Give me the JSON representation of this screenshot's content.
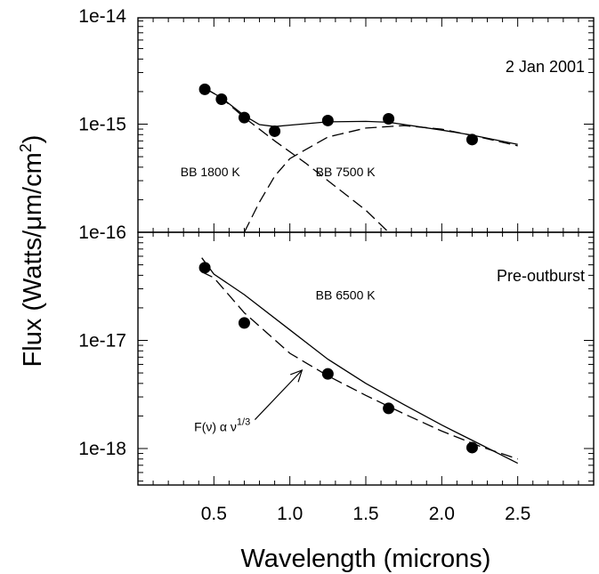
{
  "chart_data": {
    "type": "scatter",
    "xlabel": "Wavelength (microns)",
    "ylabel": "Flux (Watts/μm/cm²)",
    "ylabel_parts": {
      "main": "Flux (Watts/μm/cm",
      "sup": "2",
      "tail": ")"
    },
    "x_range": [
      0.0,
      3.0
    ],
    "x_ticks": [
      0.5,
      1.0,
      1.5,
      2.0,
      2.5
    ],
    "x_tick_labels": [
      "0.5",
      "1.0",
      "1.5",
      "2.0",
      "2.5"
    ],
    "y_scale": "log",
    "panels": [
      {
        "id": "top",
        "label": "2 Jan 2001",
        "y_range": [
          1e-16,
          1e-14
        ],
        "y_tick_labels": [
          "1e-14",
          "1e-15"
        ],
        "points": [
          {
            "x": 0.44,
            "y": 2.1e-15
          },
          {
            "x": 0.55,
            "y": 1.7e-15
          },
          {
            "x": 0.7,
            "y": 1.15e-15
          },
          {
            "x": 0.9,
            "y": 8.6e-16
          },
          {
            "x": 1.25,
            "y": 1.08e-15
          },
          {
            "x": 1.65,
            "y": 1.12e-15
          },
          {
            "x": 2.2,
            "y": 7.2e-16
          }
        ],
        "curves": [
          {
            "style": "solid",
            "points": [
              [
                0.44,
                2.15e-15
              ],
              [
                0.55,
                1.75e-15
              ],
              [
                0.7,
                1.2e-15
              ],
              [
                0.8,
                9.9e-16
              ],
              [
                0.9,
                9.5e-16
              ],
              [
                1.0,
                9.8e-16
              ],
              [
                1.25,
                1.05e-15
              ],
              [
                1.5,
                1.06e-15
              ],
              [
                1.65,
                1.04e-15
              ],
              [
                2.0,
                8.8e-16
              ],
              [
                2.2,
                7.9e-16
              ],
              [
                2.5,
                6.5e-16
              ]
            ]
          },
          {
            "style": "dashed",
            "points": [
              [
                0.44,
                2.15e-15
              ],
              [
                0.55,
                1.75e-15
              ],
              [
                0.7,
                1.15e-15
              ],
              [
                0.9,
                7e-16
              ],
              [
                1.1,
                4.4e-16
              ],
              [
                1.3,
                2.65e-16
              ],
              [
                1.5,
                1.6e-16
              ],
              [
                1.65,
                1e-16
              ]
            ]
          },
          {
            "style": "dashed",
            "points": [
              [
                0.7,
                1e-16
              ],
              [
                0.8,
                1.9e-16
              ],
              [
                0.9,
                3.3e-16
              ],
              [
                1.0,
                4.8e-16
              ],
              [
                1.25,
                7.6e-16
              ],
              [
                1.5,
                9.2e-16
              ],
              [
                1.75,
                9.7e-16
              ],
              [
                2.0,
                9e-16
              ],
              [
                2.25,
                7.6e-16
              ],
              [
                2.5,
                6.3e-16
              ]
            ]
          }
        ],
        "annotations": [
          {
            "text": "BB 1800 K",
            "x": 0.28,
            "y": 3.3e-16
          },
          {
            "text": "BB 7500 K",
            "x": 1.17,
            "y": 3.3e-16
          }
        ]
      },
      {
        "id": "bottom",
        "label": "Pre-outburst",
        "y_range": [
          5e-19,
          1e-16
        ],
        "y_tick_labels": [
          "1e-16",
          "1e-17",
          "1e-18"
        ],
        "points": [
          {
            "x": 0.44,
            "y": 4.7e-17
          },
          {
            "x": 0.7,
            "y": 1.45e-17
          },
          {
            "x": 1.25,
            "y": 4.9e-18
          },
          {
            "x": 1.65,
            "y": 2.35e-18
          },
          {
            "x": 2.2,
            "y": 1.02e-18
          }
        ],
        "curves": [
          {
            "style": "solid",
            "points": [
              [
                0.42,
                5.8e-17
              ],
              [
                0.5,
                4.1e-17
              ],
              [
                0.7,
                2.65e-17
              ],
              [
                1.0,
                1.25e-17
              ],
              [
                1.25,
                6.7e-18
              ],
              [
                1.5,
                4e-18
              ],
              [
                1.75,
                2.55e-18
              ],
              [
                2.0,
                1.65e-18
              ],
              [
                2.25,
                1.1e-18
              ],
              [
                2.5,
                7.3e-19
              ]
            ]
          },
          {
            "style": "dashed",
            "points": [
              [
                0.42,
                4.3e-17
              ],
              [
                0.5,
                3.8e-17
              ],
              [
                0.7,
                1.8e-17
              ],
              [
                1.0,
                7.6e-18
              ],
              [
                1.25,
                4.7e-18
              ],
              [
                1.5,
                3.1e-18
              ],
              [
                1.75,
                2.1e-18
              ],
              [
                2.0,
                1.45e-18
              ],
              [
                2.25,
                1.05e-18
              ],
              [
                2.5,
                8e-19
              ]
            ]
          }
        ],
        "annotations": [
          {
            "text": "BB 6500 K",
            "x": 1.17,
            "y": 2.4e-17
          }
        ],
        "formula": {
          "text": "F(ν) α ν",
          "sup": "1/3",
          "x": 0.37,
          "y": 1.45e-18
        },
        "arrow": {
          "from": [
            0.77,
            1.85e-18
          ],
          "to": [
            1.08,
            5.3e-18
          ]
        }
      }
    ]
  }
}
